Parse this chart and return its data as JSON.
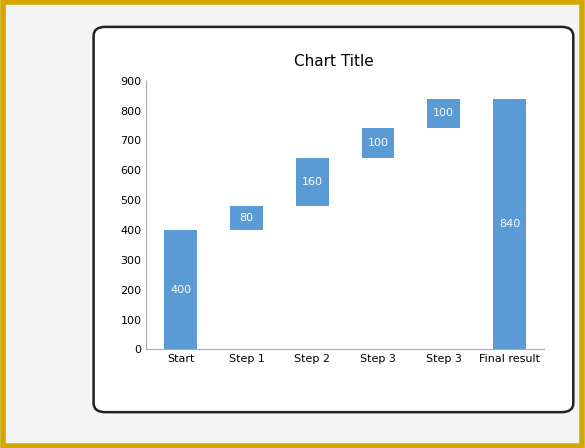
{
  "categories": [
    "Start",
    "Step 1",
    "Step 2",
    "Step 3",
    "Step 3",
    "Final result"
  ],
  "values": [
    400,
    80,
    160,
    100,
    100,
    840
  ],
  "bottoms": [
    0,
    400,
    480,
    640,
    740,
    0
  ],
  "labels": [
    "400",
    "80",
    "160",
    "100",
    "100",
    "840"
  ],
  "bar_color": "#5B9BD5",
  "label_color": "#FFFFFF",
  "title": "Chart Title",
  "ylim": [
    0,
    900
  ],
  "yticks": [
    0,
    100,
    200,
    300,
    400,
    500,
    600,
    700,
    800,
    900
  ],
  "background_color": "#FFFFFF",
  "chart_border_color": "#222222",
  "outer_background": "#F5F5F5",
  "outer_border_color": "#D4A800",
  "title_fontsize": 11,
  "tick_fontsize": 8,
  "label_fontsize": 8
}
